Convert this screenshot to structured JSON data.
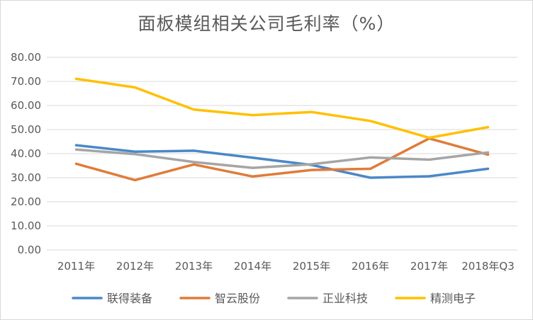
{
  "chart_data": {
    "type": "line",
    "title": "面板模组相关公司毛利率（%）",
    "xlabel": "",
    "ylabel": "",
    "categories": [
      "2011年",
      "2012年",
      "2013年",
      "2014年",
      "2015年",
      "2016年",
      "2017年",
      "2018年Q3"
    ],
    "ylim": [
      0,
      80
    ],
    "yticks": [
      "0.00",
      "10.00",
      "20.00",
      "30.00",
      "40.00",
      "50.00",
      "60.00",
      "70.00",
      "80.00"
    ],
    "grid": true,
    "legend_position": "bottom",
    "series": [
      {
        "name": "联得装备",
        "color": "#4a88c7",
        "values": [
          43.5,
          40.8,
          41.2,
          38.3,
          35.3,
          30.0,
          30.6,
          33.7
        ]
      },
      {
        "name": "智云股份",
        "color": "#e07b39",
        "values": [
          35.8,
          29.0,
          35.5,
          30.5,
          33.2,
          33.7,
          46.3,
          39.6
        ]
      },
      {
        "name": "正业科技",
        "color": "#a5a5a5",
        "values": [
          41.7,
          39.8,
          36.5,
          34.1,
          35.6,
          38.4,
          37.5,
          40.5
        ]
      },
      {
        "name": "精测电子",
        "color": "#ffc000",
        "values": [
          71.1,
          67.5,
          58.3,
          56.0,
          57.3,
          53.6,
          46.6,
          51.0
        ]
      }
    ]
  }
}
